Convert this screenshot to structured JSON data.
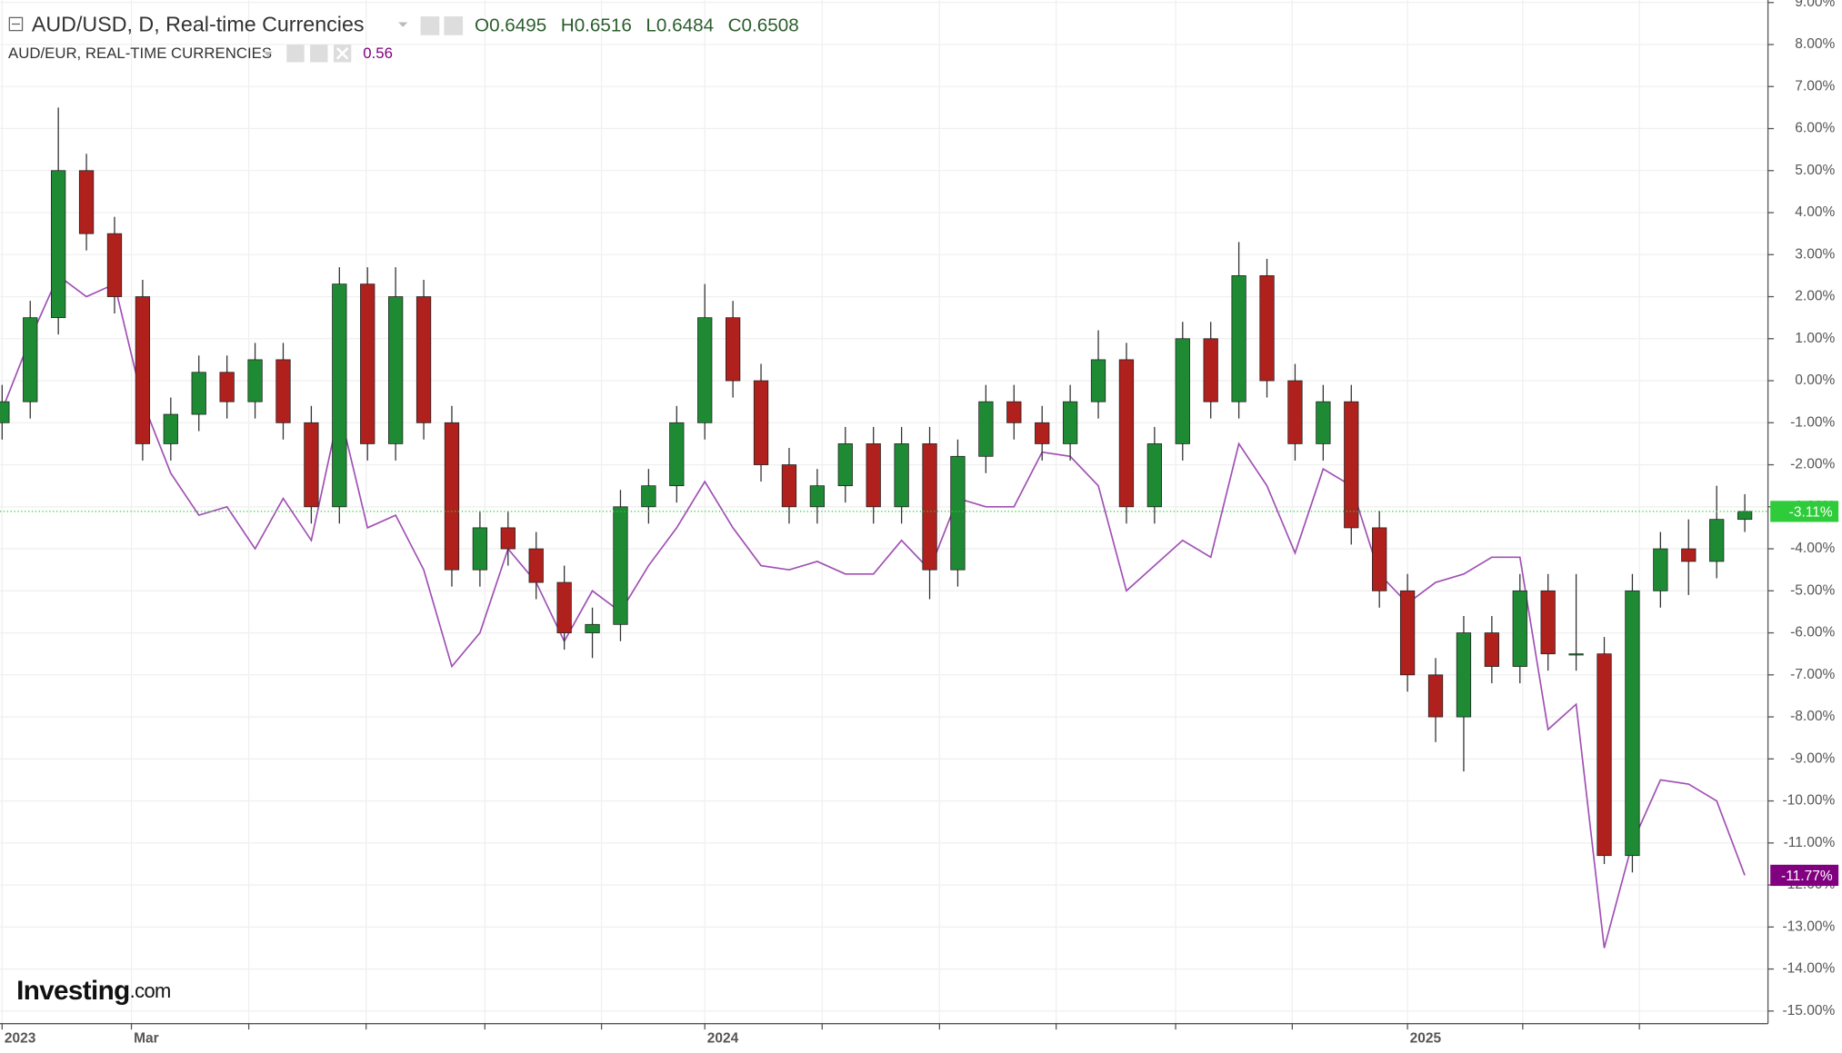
{
  "chart_data": {
    "type": "candlestick",
    "series": [
      {
        "name": "AUD/USD, D, Real-time Currencies",
        "up_color": "#1e8a34",
        "down_color": "#b0201c",
        "ohlc_labels": [
          "O",
          "H",
          "L",
          "C"
        ],
        "ohlc": [
          0.6495,
          0.6516,
          0.6484,
          0.6508
        ],
        "open": [
          -1.0,
          -0.5,
          1.5,
          5.0,
          3.5,
          2.0,
          -1.5,
          -0.8,
          0.2,
          -0.5,
          0.5,
          -1.0,
          -3.0,
          2.3,
          -1.5,
          2.0,
          -1.0,
          -4.5,
          -3.5,
          -4.0,
          -4.8,
          -6.0,
          -5.8,
          -3.0,
          -2.5,
          -1.0,
          1.5,
          0.0,
          -2.0,
          -3.0,
          -2.5,
          -1.5,
          -3.0,
          -1.5,
          -4.5,
          -1.8,
          -0.5,
          -1.0,
          -1.5,
          -0.5,
          0.5,
          -3.0,
          -1.5,
          1.0,
          -0.5,
          2.5,
          0.0,
          -1.5,
          -0.5,
          -3.5,
          -5.0,
          -7.0,
          -8.0,
          -6.0,
          -6.8,
          -5.0,
          -6.5,
          -6.5,
          -11.3,
          -5.0,
          -4.0,
          -4.3,
          -3.3
        ],
        "high": [
          -0.1,
          1.9,
          6.5,
          5.4,
          3.9,
          2.4,
          -0.4,
          0.6,
          0.6,
          0.9,
          0.9,
          -0.6,
          2.7,
          2.7,
          2.7,
          2.4,
          -0.6,
          -3.1,
          -3.1,
          -3.6,
          -4.4,
          -5.4,
          -2.6,
          -2.1,
          -0.6,
          2.3,
          1.9,
          0.4,
          -1.6,
          -2.1,
          -1.1,
          -1.1,
          -1.1,
          -1.1,
          -1.4,
          -0.1,
          -0.1,
          -0.6,
          -0.1,
          1.2,
          0.9,
          -1.1,
          1.4,
          1.4,
          3.3,
          2.9,
          0.4,
          -0.1,
          -0.1,
          -3.1,
          -4.6,
          -6.6,
          -5.6,
          -5.6,
          -4.6,
          -4.6,
          -4.6,
          -6.1,
          -4.6,
          -3.6,
          -3.3,
          -2.5,
          -2.7
        ],
        "low": [
          -1.4,
          -0.9,
          1.1,
          3.1,
          1.6,
          -1.9,
          -1.9,
          -1.2,
          -0.9,
          -0.9,
          -1.4,
          -3.4,
          -3.4,
          -1.9,
          -1.9,
          -1.4,
          -4.9,
          -4.9,
          -4.4,
          -5.2,
          -6.4,
          -6.6,
          -6.2,
          -3.4,
          -2.9,
          -1.4,
          -0.4,
          -2.4,
          -3.4,
          -3.4,
          -2.9,
          -3.4,
          -3.4,
          -5.2,
          -4.9,
          -2.2,
          -1.4,
          -1.9,
          -1.9,
          -0.9,
          -3.4,
          -3.4,
          -1.9,
          -0.9,
          -0.9,
          -0.4,
          -1.9,
          -1.9,
          -3.9,
          -5.4,
          -7.4,
          -8.6,
          -9.3,
          -7.2,
          -7.2,
          -6.9,
          -6.9,
          -11.5,
          -11.7,
          -5.4,
          -5.1,
          -4.7,
          -3.6
        ],
        "close": [
          -0.5,
          1.5,
          5.0,
          3.5,
          2.0,
          -1.5,
          -0.8,
          0.2,
          -0.5,
          0.5,
          -1.0,
          -3.0,
          2.3,
          -1.5,
          2.0,
          -1.0,
          -4.5,
          -3.5,
          -4.0,
          -4.8,
          -6.0,
          -5.8,
          -3.0,
          -2.5,
          -1.0,
          1.5,
          0.0,
          -2.0,
          -3.0,
          -2.5,
          -1.5,
          -3.0,
          -1.5,
          -4.5,
          -1.8,
          -0.5,
          -1.0,
          -1.5,
          -0.5,
          0.5,
          -3.0,
          -1.5,
          1.0,
          -0.5,
          2.5,
          0.0,
          -1.5,
          -0.5,
          -3.5,
          -5.0,
          -7.0,
          -8.0,
          -6.0,
          -6.8,
          -5.0,
          -6.5,
          -6.5,
          -11.3,
          -5.0,
          -4.0,
          -4.3,
          -3.3,
          -3.11
        ],
        "value_labels": [
          null,
          null,
          null,
          null,
          null,
          null,
          null,
          null,
          null,
          null,
          null,
          null,
          null,
          null,
          null,
          null,
          null,
          null,
          null,
          null,
          null,
          null,
          null,
          null,
          null,
          null,
          null,
          null,
          null,
          null,
          null,
          null,
          null,
          null,
          null,
          null,
          null,
          null,
          null,
          null,
          null,
          null,
          null,
          null,
          null,
          null,
          null,
          null,
          null,
          null,
          null,
          null,
          null,
          null,
          null,
          null,
          null,
          null,
          null,
          null,
          null,
          null,
          "-3.11%"
        ],
        "label_color": "#2ecc3a"
      },
      {
        "name": "AUD/EUR, REAL-TIME CURRENCIES",
        "color": "#a050b4",
        "label_color": "#800080",
        "last": 0.56,
        "values": [
          -0.7,
          1.0,
          2.5,
          2.0,
          2.3,
          -0.5,
          -2.2,
          -3.2,
          -3.0,
          -4.0,
          -2.8,
          -3.8,
          -0.7,
          -3.5,
          -3.2,
          -4.5,
          -6.8,
          -6.0,
          -4.0,
          -4.8,
          -6.2,
          -5.0,
          -5.5,
          -4.4,
          -3.5,
          -2.4,
          -3.5,
          -4.4,
          -4.5,
          -4.3,
          -4.6,
          -4.6,
          -3.8,
          -4.5,
          -2.8,
          -3.0,
          -3.0,
          -1.7,
          -1.8,
          -2.5,
          -5.0,
          -4.4,
          -3.8,
          -4.2,
          -1.5,
          -2.5,
          -4.1,
          -2.1,
          -2.5,
          -4.6,
          -5.3,
          -4.8,
          -4.6,
          -4.2,
          -4.2,
          -8.3,
          -7.7,
          -13.5,
          -11.0,
          -9.5,
          -9.6,
          -10.0,
          -11.77
        ],
        "value_labels": [
          null,
          null,
          null,
          null,
          null,
          null,
          null,
          null,
          null,
          null,
          null,
          null,
          null,
          null,
          null,
          null,
          null,
          null,
          null,
          null,
          null,
          null,
          null,
          null,
          null,
          null,
          null,
          null,
          null,
          null,
          null,
          null,
          null,
          null,
          null,
          null,
          null,
          null,
          null,
          null,
          null,
          null,
          null,
          null,
          null,
          null,
          null,
          null,
          null,
          null,
          null,
          null,
          null,
          null,
          null,
          null,
          null,
          null,
          null,
          null,
          null,
          null,
          "-11.77%"
        ]
      }
    ],
    "x": [
      2023,
      2023.04,
      2023.08,
      2023.12,
      2023.16,
      2023.2,
      2023.24,
      2023.28,
      2023.32,
      2023.36,
      2023.4,
      2023.44,
      2023.48,
      2023.52,
      2023.56,
      2023.6,
      2023.64,
      2023.68,
      2023.72,
      2023.76,
      2023.8,
      2023.84,
      2023.88,
      2023.92,
      2023.96,
      2024,
      2024.04,
      2024.08,
      2024.12,
      2024.16,
      2024.2,
      2024.24,
      2024.28,
      2024.32,
      2024.36,
      2024.4,
      2024.44,
      2024.48,
      2024.52,
      2024.56,
      2024.6,
      2024.64,
      2024.68,
      2024.72,
      2024.76,
      2024.8,
      2024.84,
      2024.88,
      2024.92,
      2024.96,
      2025,
      2025.04,
      2025.08,
      2025.12,
      2025.16,
      2025.2,
      2025.24,
      2025.28,
      2025.32,
      2025.36,
      2025.4,
      2025.44,
      2025.48
    ],
    "xlim": [
      2022.997,
      2025.513
    ],
    "xticks": [
      2023,
      {
        "value": 2023.184,
        "label": "Mar"
      },
      {
        "value": 2023.351,
        "label": null
      },
      {
        "value": 2023.518,
        "label": null
      },
      {
        "value": 2023.687,
        "label": null
      },
      {
        "value": 2023.853,
        "label": null
      },
      2024,
      {
        "value": 2024.167,
        "label": null
      },
      {
        "value": 2024.334,
        "label": null
      },
      {
        "value": 2024.5,
        "label": null
      },
      {
        "value": 2024.67,
        "label": null
      },
      {
        "value": 2024.836,
        "label": null
      },
      2025,
      {
        "value": 2025.164,
        "label": null
      },
      {
        "value": 2025.33,
        "label": null
      }
    ],
    "ylim": [
      -15.3,
      9.06
    ],
    "yticks": [
      {
        "value": 9,
        "label": "9.00%"
      },
      {
        "value": 8,
        "label": "8.00%"
      },
      {
        "value": 7,
        "label": "7.00%"
      },
      {
        "value": 6,
        "label": "6.00%"
      },
      {
        "value": 5,
        "label": "5.00%"
      },
      {
        "value": 4,
        "label": "4.00%"
      },
      {
        "value": 3,
        "label": "3.00%"
      },
      {
        "value": 2,
        "label": "2.00%"
      },
      {
        "value": 1,
        "label": "1.00%"
      },
      {
        "value": 0,
        "label": "0.00%"
      },
      {
        "value": -1,
        "label": "-1.00%"
      },
      {
        "value": -2,
        "label": "-2.00%"
      },
      {
        "value": -3,
        "label": "-3.00%"
      },
      {
        "value": -4,
        "label": "-4.00%"
      },
      {
        "value": -5,
        "label": "-5.00%"
      },
      {
        "value": -6,
        "label": "-6.00%"
      },
      {
        "value": -7,
        "label": "-7.00%"
      },
      {
        "value": -8,
        "label": "-8.00%"
      },
      {
        "value": -9,
        "label": "-9.00%"
      },
      {
        "value": -10,
        "label": "-10.00%"
      },
      {
        "value": -11,
        "label": "-11.00%"
      },
      {
        "value": -12,
        "label": "-12.00%"
      },
      {
        "value": -13,
        "label": "-13.00%"
      },
      {
        "value": -14,
        "label": "-14.00%"
      },
      {
        "value": -15,
        "label": "-15.00%"
      }
    ],
    "grid": true,
    "logo": {
      "name": "Investing",
      "suffix": ".com"
    }
  }
}
